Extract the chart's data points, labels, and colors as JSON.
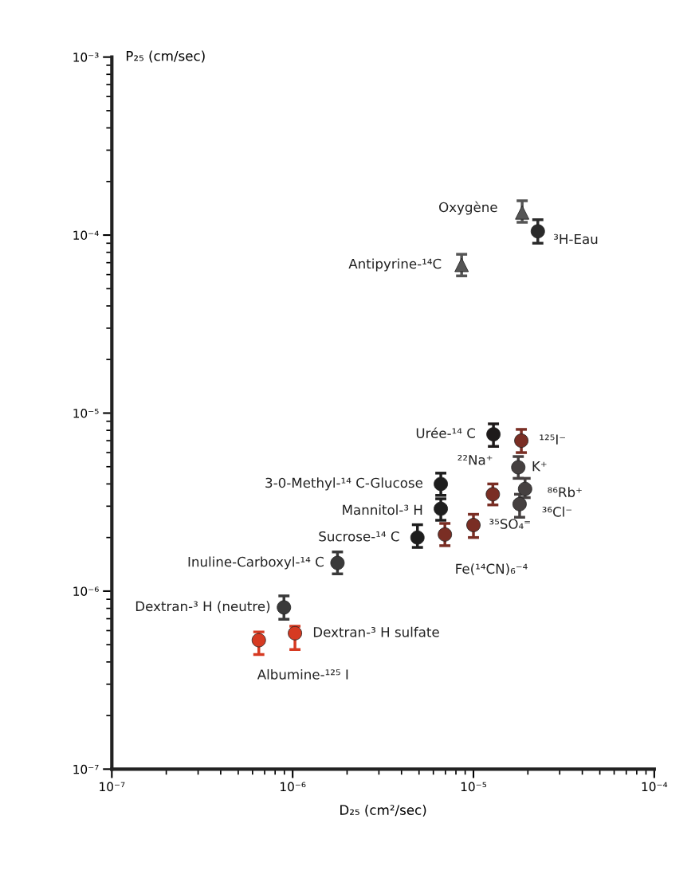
{
  "chart_data": {
    "type": "scatter",
    "xlabel": "D₂₅ (cm²/sec)",
    "ylabel": "P₂₅ (cm/sec)",
    "log": "xy",
    "grid": false,
    "legend": false,
    "xlim": [
      1e-07,
      0.0001
    ],
    "ylim": [
      1e-07,
      0.001
    ],
    "xticks": [
      {
        "value": 1e-07,
        "label": "10⁻⁷"
      },
      {
        "value": 1e-06,
        "label": "10⁻⁶"
      },
      {
        "value": 1e-05,
        "label": "10⁻⁵"
      },
      {
        "value": 0.0001,
        "label": "10⁻⁴"
      }
    ],
    "yticks": [
      {
        "value": 1e-07,
        "label": "10⁻⁷"
      },
      {
        "value": 1e-06,
        "label": "10⁻⁶"
      },
      {
        "value": 1e-05,
        "label": "10⁻⁵"
      },
      {
        "value": 0.0001,
        "label": "10⁻⁴"
      },
      {
        "value": 0.001,
        "label": "10⁻³"
      }
    ],
    "series": [
      {
        "marker": "circle",
        "x": [
          2.27e-05,
          1.29e-05,
          1.84e-05,
          1.28e-05,
          1.77e-05,
          1.93e-05,
          1.8e-05,
          6.6e-06,
          6.6e-06,
          1e-05,
          6.95e-06,
          4.9e-06,
          1.77e-06,
          8.95e-07,
          1.03e-06,
          6.5e-07
        ],
        "values": [
          0.000105,
          7.6e-06,
          7e-06,
          3.5e-06,
          4.96e-06,
          3.75e-06,
          3.08e-06,
          4e-06,
          2.9e-06,
          2.35e-06,
          2.08e-06,
          2e-06,
          1.44e-06,
          8.1e-07,
          5.8e-07,
          5.3e-07
        ],
        "errors": [
          [
            9e-05,
            0.000122
          ],
          [
            6.5e-06,
            8.7e-06
          ],
          [
            6e-06,
            8.1e-06
          ],
          [
            3.05e-06,
            4e-06
          ],
          [
            4.3e-06,
            5.7e-06
          ],
          [
            3.35e-06,
            4.3e-06
          ],
          [
            2.6e-06,
            3.5e-06
          ],
          [
            3.45e-06,
            4.6e-06
          ],
          [
            2.5e-06,
            3.3e-06
          ],
          [
            2e-06,
            2.7e-06
          ],
          [
            1.8e-06,
            2.4e-06
          ],
          [
            1.76e-06,
            2.36e-06
          ],
          [
            1.25e-06,
            1.66e-06
          ],
          [
            6.95e-07,
            9.4e-07
          ],
          [
            4.7e-07,
            6.35e-07
          ],
          [
            4.4e-07,
            5.9e-07
          ]
        ],
        "colors": [
          "#2a2a2a",
          "#1e1a1a",
          "#7a2e24",
          "#7a2e24",
          "#454040",
          "#454040",
          "#454040",
          "#1e1e1e",
          "#1e1e1e",
          "#7a2e24",
          "#7a2e24",
          "#1e1e1e",
          "#3a3a3a",
          "#3a3a3a",
          "#d63a22",
          "#d63a22"
        ]
      },
      {
        "marker": "triangle",
        "x": [
          1.86e-05,
          8.6e-06
        ],
        "values": [
          0.000134,
          6.8e-05
        ],
        "errors": [
          [
            0.000118,
            0.000156
          ],
          [
            5.9e-05,
            7.8e-05
          ]
        ],
        "colors": [
          "#555555",
          "#555555"
        ]
      }
    ],
    "annotations": [
      {
        "text": "Oxygène",
        "x": 1.86e-05,
        "y": 0.000134
      },
      {
        "text": "³H-Eau",
        "x": 2.27e-05,
        "y": 0.000105
      },
      {
        "text": "Antipyrine-¹⁴C",
        "x": 8.6e-06,
        "y": 6.8e-05
      },
      {
        "text": "Urée-¹⁴ C",
        "x": 1.29e-05,
        "y": 7.6e-06
      },
      {
        "text": "¹²⁵I⁻",
        "x": 1.84e-05,
        "y": 7e-06
      },
      {
        "text": "²²Na⁺",
        "x": 1.28e-05,
        "y": 3.5e-06
      },
      {
        "text": "K⁺",
        "x": 1.77e-05,
        "y": 4.96e-06
      },
      {
        "text": "⁸⁶Rb⁺",
        "x": 1.93e-05,
        "y": 3.75e-06
      },
      {
        "text": "³⁶Cl⁻",
        "x": 1.8e-05,
        "y": 3.08e-06
      },
      {
        "text": "3-0-Methyl-¹⁴ C-Glucose",
        "x": 6.6e-06,
        "y": 4e-06
      },
      {
        "text": "Mannitol-³ H",
        "x": 6.6e-06,
        "y": 2.9e-06
      },
      {
        "text": "³⁵SO₄⁼",
        "x": 1e-05,
        "y": 2.35e-06
      },
      {
        "text": "Fe(¹⁴CN)₆⁻⁴",
        "x": 6.95e-06,
        "y": 2.08e-06
      },
      {
        "text": "Sucrose-¹⁴ C",
        "x": 4.9e-06,
        "y": 2e-06
      },
      {
        "text": "Inuline-Carboxyl-¹⁴ C",
        "x": 1.77e-06,
        "y": 1.44e-06
      },
      {
        "text": "Dextran-³ H (neutre)",
        "x": 8.95e-07,
        "y": 8.1e-07
      },
      {
        "text": "Dextran-³ H sulfate",
        "x": 1.03e-06,
        "y": 5.8e-07
      },
      {
        "text": "Albumine-¹²⁵ I",
        "x": 6.5e-07,
        "y": 5.3e-07
      }
    ]
  }
}
